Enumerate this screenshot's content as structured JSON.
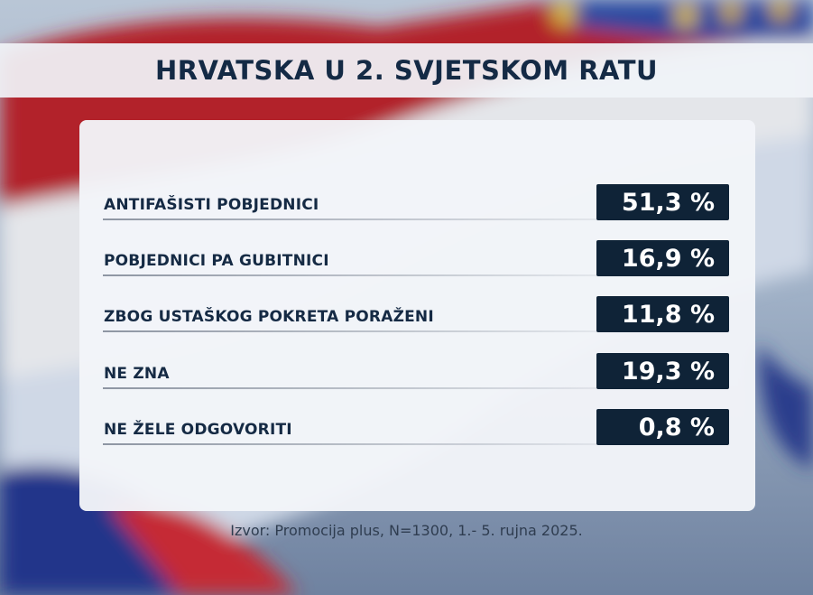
{
  "title": "HRVATSKA U 2. SVJETSKOM RATU",
  "source": "Izvor: Promocija plus, N=1300, 1.- 5. rujna 2025.",
  "colors": {
    "value_box": "#0f2337",
    "title_text": "#142a45",
    "panel": "#f2f5f9"
  },
  "chart_data": {
    "type": "table",
    "title": "HRVATSKA U 2. SVJETSKOM RATU",
    "rows": [
      {
        "label": "ANTIFAŠISTI POBJEDNICI",
        "value": 51.3,
        "display": "51,3 %"
      },
      {
        "label": "POBJEDNICI PA GUBITNICI",
        "value": 16.9,
        "display": "16,9 %"
      },
      {
        "label": "ZBOG USTAŠKOG POKRETA PORAŽENI",
        "value": 11.8,
        "display": "11,8 %"
      },
      {
        "label": "NE ZNA",
        "value": 19.3,
        "display": "19,3 %"
      },
      {
        "label": "NE ŽELE ODGOVORITI",
        "value": 0.8,
        "display": "0,8 %"
      }
    ]
  }
}
